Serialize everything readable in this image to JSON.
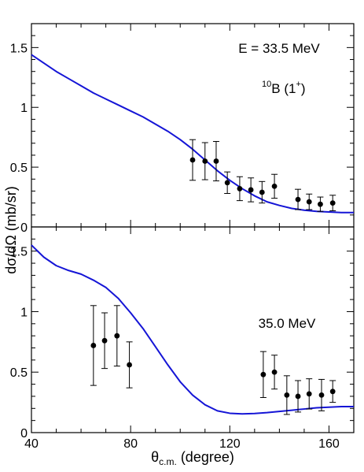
{
  "chart_data": {
    "type": "scatter",
    "shared_x": {
      "label_main": "θ",
      "label_sub": "c.m.",
      "label_rest": " (degree)",
      "xlim": [
        40,
        170
      ],
      "major_ticks": [
        40,
        80,
        120,
        160
      ],
      "minor_step": 10
    },
    "shared_y_label": "dσ/dΩ (mb/sr)",
    "panels": [
      {
        "name": "top",
        "ylim": [
          0,
          1.7
        ],
        "y_major_ticks": [
          0,
          0.5,
          1,
          1.5
        ],
        "y_tick_labels": [
          "0",
          "0.5",
          "1",
          "1.5"
        ],
        "y_minor_step": 0.1,
        "annotations": {
          "energy": "E = 33.5 MeV",
          "nucleus_mass": "10",
          "nucleus_symbol": "B",
          "state_open": " (1",
          "state_sup": "+",
          "state_close": ")"
        },
        "curve": {
          "color": "#1515d6",
          "x": [
            40,
            45,
            50,
            55,
            60,
            65,
            70,
            75,
            80,
            85,
            90,
            95,
            100,
            105,
            110,
            115,
            120,
            125,
            130,
            135,
            140,
            145,
            150,
            155,
            160,
            165,
            170
          ],
          "y": [
            1.44,
            1.37,
            1.3,
            1.24,
            1.18,
            1.12,
            1.07,
            1.02,
            0.97,
            0.92,
            0.86,
            0.8,
            0.73,
            0.65,
            0.56,
            0.47,
            0.39,
            0.32,
            0.26,
            0.21,
            0.18,
            0.155,
            0.14,
            0.13,
            0.125,
            0.12,
            0.12
          ]
        },
        "points": [
          {
            "x": 105,
            "y": 0.56,
            "err": 0.17
          },
          {
            "x": 110,
            "y": 0.55,
            "err": 0.155
          },
          {
            "x": 114.5,
            "y": 0.55,
            "err": 0.165
          },
          {
            "x": 119,
            "y": 0.37,
            "err": 0.09
          },
          {
            "x": 124,
            "y": 0.32,
            "err": 0.1
          },
          {
            "x": 128.5,
            "y": 0.31,
            "err": 0.1
          },
          {
            "x": 133,
            "y": 0.29,
            "err": 0.09
          },
          {
            "x": 138,
            "y": 0.34,
            "err": 0.1
          },
          {
            "x": 147.5,
            "y": 0.23,
            "err": 0.085
          },
          {
            "x": 152,
            "y": 0.21,
            "err": 0.065
          },
          {
            "x": 156.5,
            "y": 0.19,
            "err": 0.06
          },
          {
            "x": 161.5,
            "y": 0.2,
            "err": 0.065
          }
        ]
      },
      {
        "name": "bottom",
        "ylim": [
          0,
          1.7
        ],
        "y_major_ticks": [
          0,
          0.5,
          1,
          1.5
        ],
        "y_tick_labels": [
          "0",
          "0.5",
          "1",
          "1.5"
        ],
        "y_minor_step": 0.1,
        "annotations": {
          "energy": "35.0 MeV"
        },
        "curve": {
          "color": "#1515d6",
          "x": [
            40,
            45,
            50,
            55,
            60,
            65,
            70,
            75,
            80,
            85,
            90,
            95,
            100,
            105,
            110,
            115,
            120,
            125,
            130,
            135,
            140,
            145,
            150,
            155,
            160,
            165,
            170
          ],
          "y": [
            1.55,
            1.45,
            1.38,
            1.34,
            1.31,
            1.26,
            1.2,
            1.11,
            0.99,
            0.86,
            0.71,
            0.56,
            0.42,
            0.31,
            0.23,
            0.18,
            0.16,
            0.155,
            0.158,
            0.165,
            0.175,
            0.185,
            0.195,
            0.205,
            0.21,
            0.215,
            0.215
          ]
        },
        "points": [
          {
            "x": 65,
            "y": 0.72,
            "err": 0.33
          },
          {
            "x": 69.5,
            "y": 0.76,
            "err": 0.23
          },
          {
            "x": 74.5,
            "y": 0.8,
            "err": 0.25
          },
          {
            "x": 79.5,
            "y": 0.56,
            "err": 0.19
          },
          {
            "x": 133.5,
            "y": 0.48,
            "err": 0.19
          },
          {
            "x": 138,
            "y": 0.5,
            "err": 0.14
          },
          {
            "x": 143,
            "y": 0.31,
            "err": 0.16
          },
          {
            "x": 147.5,
            "y": 0.3,
            "err": 0.13
          },
          {
            "x": 152,
            "y": 0.32,
            "err": 0.125
          },
          {
            "x": 157,
            "y": 0.31,
            "err": 0.13
          },
          {
            "x": 161.5,
            "y": 0.34,
            "err": 0.09
          }
        ]
      }
    ]
  }
}
